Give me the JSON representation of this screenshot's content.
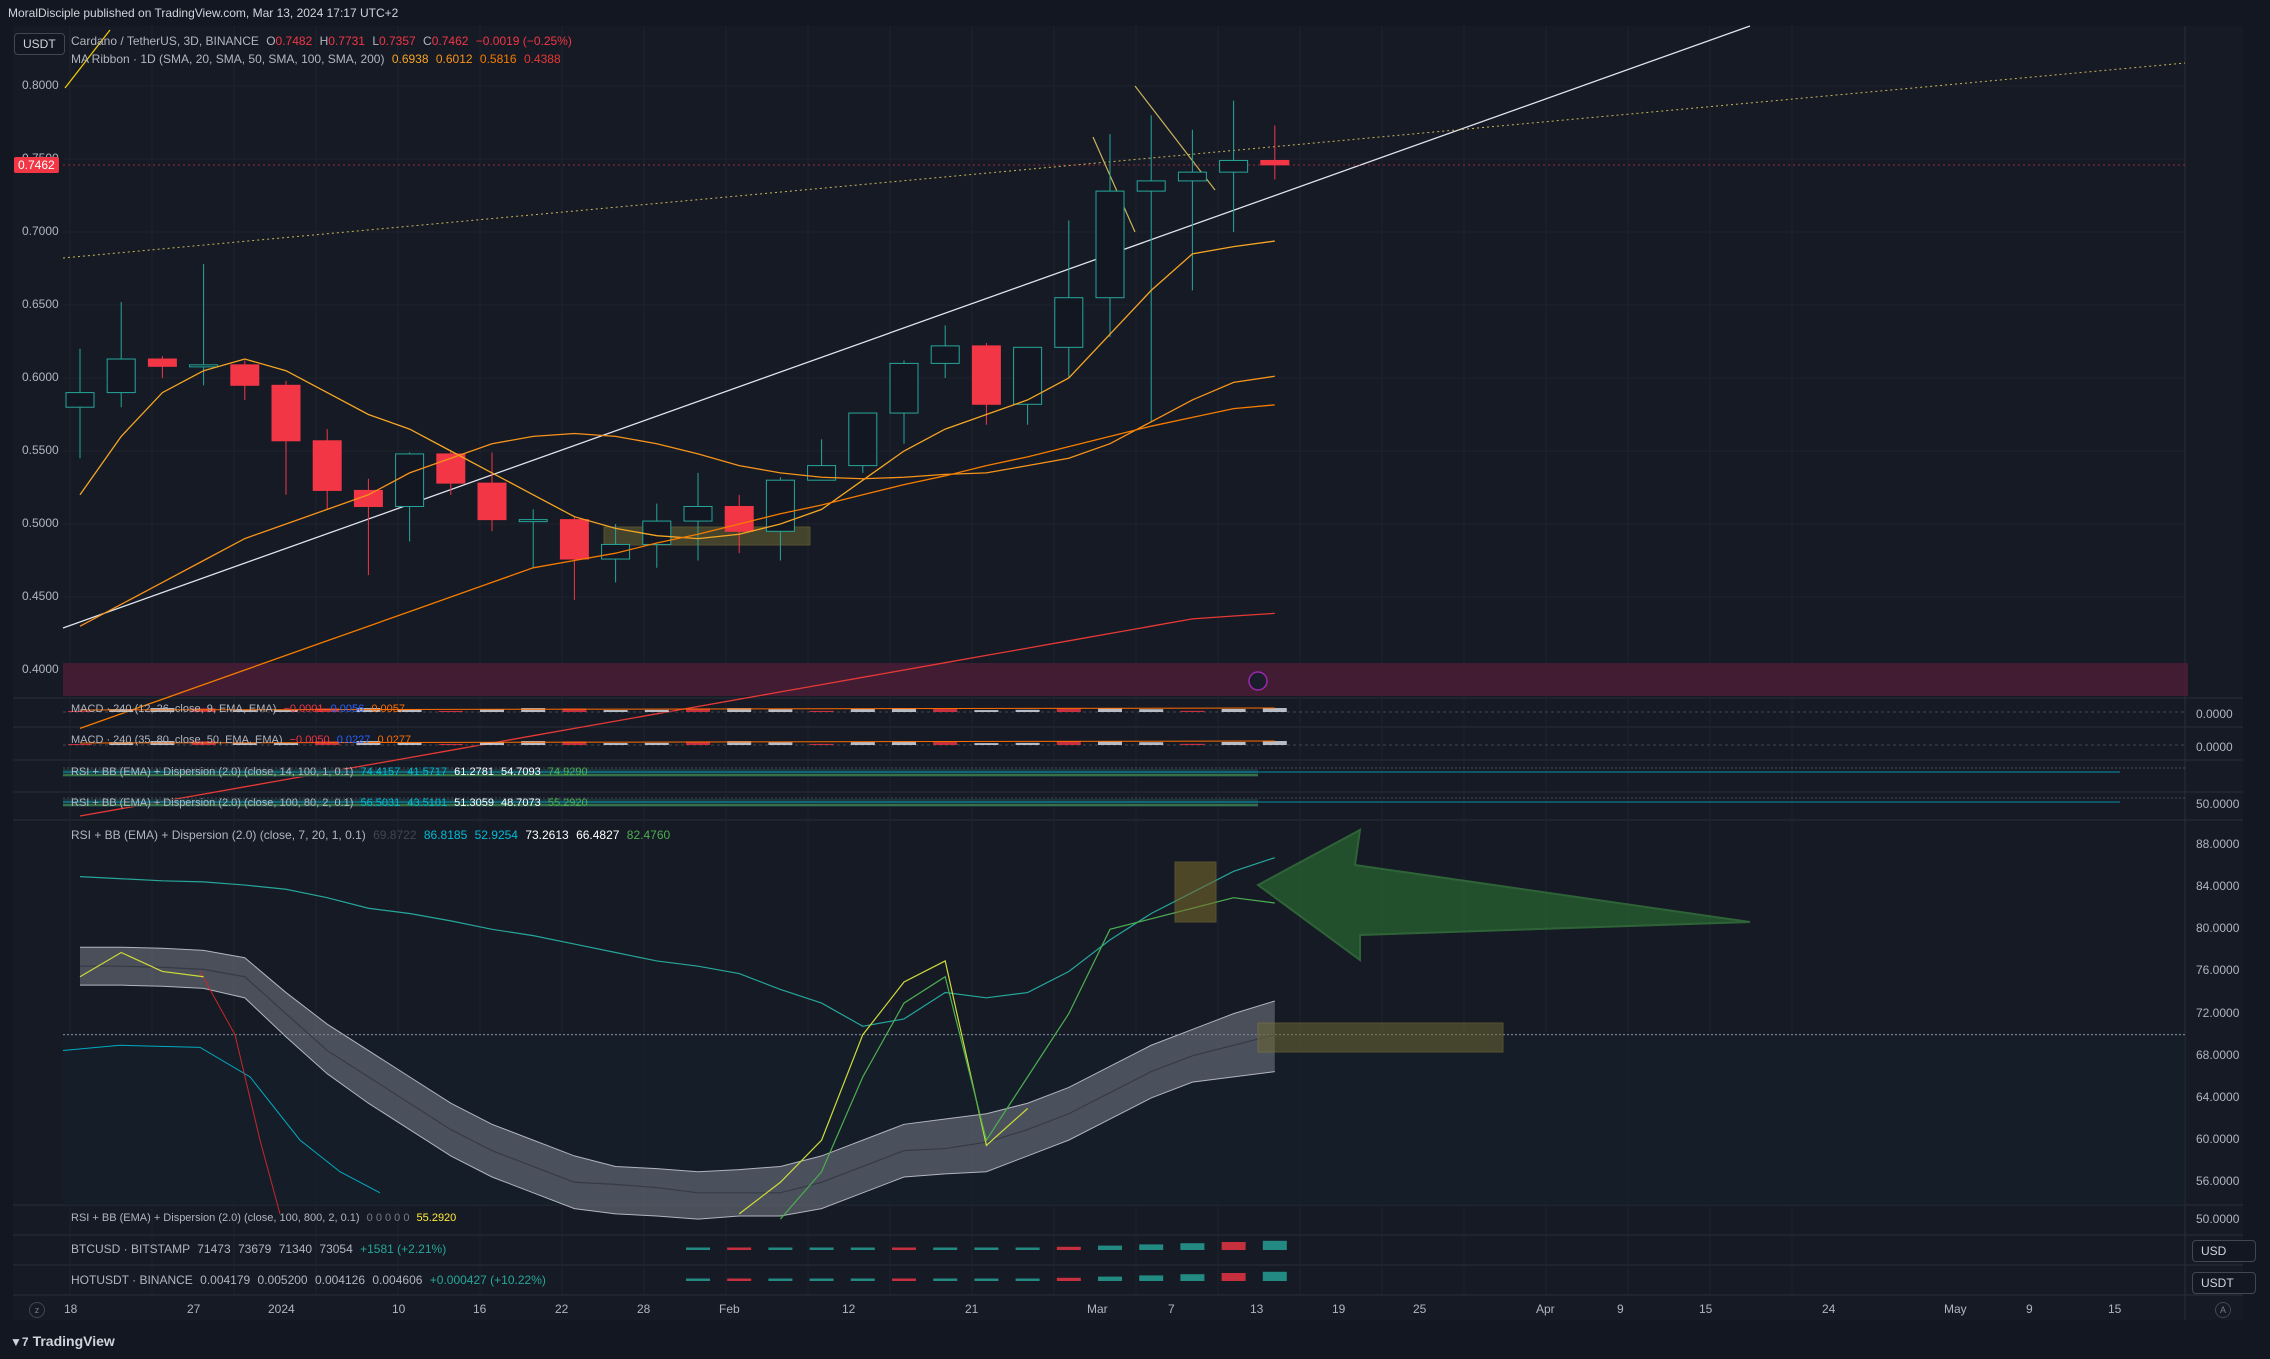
{
  "header": {
    "publisher": "MoralDisciple published on TradingView.com, Mar 13, 2024 17:17 UTC+2",
    "currency_badge": "USDT"
  },
  "legend": {
    "main": {
      "title": "Cardano / TetherUS, 3D, BINANCE",
      "o_label": "O",
      "o": "0.7482",
      "h_label": "H",
      "h": "0.7731",
      "l_label": "L",
      "l": "0.7357",
      "c_label": "C",
      "c": "0.7462",
      "change": "−0.0019 (−0.25%)"
    },
    "ribbon": {
      "title": "MA Ribbon · 1D (SMA, 20, SMA, 50, SMA, 100, SMA, 200)",
      "v1": "0.6938",
      "v2": "0.6012",
      "v3": "0.5816",
      "v4": "0.4388"
    }
  },
  "current_price_tag": "0.7462",
  "price_axis": [
    "0.8000",
    "0.7500",
    "0.7000",
    "0.6500",
    "0.6000",
    "0.5500",
    "0.5000",
    "0.4500",
    "0.4000"
  ],
  "panes": {
    "macd1": {
      "label": "MACD · 240 (12, 26, close, 9, EMA, EMA)",
      "v1": "−0.0001",
      "v2": "0.0056",
      "v3": "0.0057",
      "axis": "0.0000"
    },
    "macd2": {
      "label": "MACD · 240 (35, 80, close, 50, EMA, EMA)",
      "v1": "−0.0050",
      "v2": "0.0227",
      "v3": "0.0277",
      "axis": "0.0000"
    },
    "rsi1": {
      "label": "RSI + BB (EMA) + Dispersion (2.0) (close, 14, 100, 1, 0.1)",
      "v1": "74.4157",
      "v2": "41.5717",
      "v3": "61.2781",
      "v4": "54.7093",
      "v5": "74.9290"
    },
    "rsi2": {
      "label": "RSI + BB (EMA) + Dispersion (2.0) (close, 100, 80, 2, 0.1)",
      "v1": "56.5031",
      "v2": "43.5101",
      "v3": "51.3059",
      "v4": "48.7073",
      "v5": "55.2920",
      "axis": "50.0000"
    },
    "rsi3": {
      "label": "RSI + BB (EMA) + Dispersion (2.0) (close, 7, 20, 1, 0.1)",
      "v0": "69.8722",
      "v1": "86.8185",
      "v2": "52.9254",
      "v3": "73.2613",
      "v4": "66.4827",
      "v5": "82.4760",
      "axis": [
        "88.0000",
        "84.0000",
        "80.0000",
        "76.0000",
        "72.0000",
        "68.0000",
        "64.0000",
        "60.0000",
        "56.0000"
      ]
    },
    "rsi4": {
      "label": "RSI + BB (EMA) + Dispersion (2.0) (close, 100, 800, 2, 0.1)",
      "values": "0 0 0 0 0",
      "v5": "55.2920",
      "axis": "50.0000"
    },
    "btc": {
      "label": "BTCUSD · BITSTAMP",
      "o": "71473",
      "h": "73679",
      "l": "71340",
      "c": "73054",
      "change": "+1581 (+2.21%)",
      "badge": "USD"
    },
    "hot": {
      "label": "HOTUSDT · BINANCE",
      "o": "0.004179",
      "h": "0.005200",
      "l": "0.004126",
      "c": "0.004606",
      "change": "+0.000427 (+10.22%)",
      "badge": "USDT"
    }
  },
  "time_axis": [
    "18",
    "27",
    "2024",
    "10",
    "16",
    "22",
    "28",
    "Feb",
    "12",
    "21",
    "Mar",
    "7",
    "13",
    "19",
    "25",
    "Apr",
    "9",
    "15",
    "24",
    "May",
    "9",
    "15"
  ],
  "footer": {
    "brand": "TradingView"
  },
  "colors": {
    "up": "#26a69a",
    "down": "#f23645",
    "ma20": "#f5a623",
    "ma50": "#f7931a",
    "ma100": "#f57c00",
    "ma200": "#e53935",
    "trend": "#e0e3eb",
    "dotted": "#c9b458",
    "arrow": "#2e7d32"
  },
  "chart_data": {
    "type": "candlestick",
    "symbol": "Cardano / TetherUS, 3D, BINANCE",
    "ylim": [
      0.39,
      0.82
    ],
    "candles": [
      [
        0.58,
        0.62,
        0.545,
        0.59
      ],
      [
        0.59,
        0.652,
        0.58,
        0.613
      ],
      [
        0.613,
        0.615,
        0.6,
        0.608
      ],
      [
        0.608,
        0.678,
        0.595,
        0.609
      ],
      [
        0.609,
        0.612,
        0.585,
        0.595
      ],
      [
        0.595,
        0.598,
        0.52,
        0.557
      ],
      [
        0.557,
        0.565,
        0.51,
        0.523
      ],
      [
        0.523,
        0.531,
        0.465,
        0.512
      ],
      [
        0.512,
        0.549,
        0.488,
        0.548
      ],
      [
        0.548,
        0.55,
        0.52,
        0.528
      ],
      [
        0.528,
        0.549,
        0.495,
        0.503
      ],
      [
        0.503,
        0.51,
        0.47,
        0.503
      ],
      [
        0.503,
        0.505,
        0.448,
        0.476
      ],
      [
        0.476,
        0.5,
        0.46,
        0.486
      ],
      [
        0.486,
        0.514,
        0.47,
        0.502
      ],
      [
        0.502,
        0.535,
        0.475,
        0.512
      ],
      [
        0.512,
        0.52,
        0.48,
        0.495
      ],
      [
        0.495,
        0.532,
        0.475,
        0.53
      ],
      [
        0.53,
        0.558,
        0.53,
        0.54
      ],
      [
        0.54,
        0.576,
        0.535,
        0.576
      ],
      [
        0.576,
        0.612,
        0.555,
        0.61
      ],
      [
        0.61,
        0.636,
        0.6,
        0.622
      ],
      [
        0.622,
        0.624,
        0.568,
        0.582
      ],
      [
        0.582,
        0.621,
        0.568,
        0.621
      ],
      [
        0.621,
        0.708,
        0.6,
        0.655
      ],
      [
        0.655,
        0.767,
        0.628,
        0.728
      ],
      [
        0.728,
        0.78,
        0.57,
        0.735
      ],
      [
        0.735,
        0.77,
        0.66,
        0.741
      ],
      [
        0.741,
        0.79,
        0.7,
        0.749
      ],
      [
        0.749,
        0.773,
        0.736,
        0.746
      ]
    ],
    "ma_ribbon": {
      "sma20": [
        0.52,
        0.56,
        0.59,
        0.605,
        0.613,
        0.605,
        0.59,
        0.575,
        0.565,
        0.55,
        0.535,
        0.52,
        0.505,
        0.497,
        0.492,
        0.49,
        0.493,
        0.5,
        0.51,
        0.53,
        0.55,
        0.565,
        0.575,
        0.585,
        0.6,
        0.63,
        0.66,
        0.685,
        0.69,
        0.6938
      ],
      "sma50": [
        0.43,
        0.445,
        0.46,
        0.475,
        0.49,
        0.5,
        0.51,
        0.52,
        0.535,
        0.545,
        0.555,
        0.56,
        0.562,
        0.56,
        0.555,
        0.548,
        0.54,
        0.535,
        0.532,
        0.531,
        0.532,
        0.534,
        0.535,
        0.54,
        0.545,
        0.555,
        0.57,
        0.585,
        0.597,
        0.6012
      ],
      "sma100": [
        0.36,
        0.37,
        0.38,
        0.39,
        0.4,
        0.41,
        0.42,
        0.43,
        0.44,
        0.45,
        0.46,
        0.47,
        0.475,
        0.48,
        0.487,
        0.493,
        0.5,
        0.507,
        0.513,
        0.52,
        0.527,
        0.533,
        0.54,
        0.546,
        0.553,
        0.56,
        0.567,
        0.573,
        0.579,
        0.5816
      ],
      "sma200": [
        0.3,
        0.305,
        0.31,
        0.315,
        0.32,
        0.325,
        0.33,
        0.335,
        0.34,
        0.345,
        0.35,
        0.355,
        0.36,
        0.365,
        0.37,
        0.375,
        0.38,
        0.385,
        0.39,
        0.395,
        0.4,
        0.405,
        0.41,
        0.415,
        0.42,
        0.425,
        0.43,
        0.435,
        0.437,
        0.4388
      ]
    },
    "rsi_pane": {
      "ylim": [
        52,
        90
      ],
      "rsi": [
        75.5,
        77.8,
        76.0,
        75.5,
        null,
        null,
        null,
        null,
        null,
        null,
        null,
        null,
        null,
        null,
        null,
        null,
        null,
        52.5,
        57.0,
        66.0,
        73.0,
        75.5,
        60.0,
        66.0,
        72.0,
        80.0,
        81.0,
        82.0,
        83.0,
        82.5
      ],
      "slow": [
        85,
        84.8,
        84.6,
        84.5,
        84.2,
        83.8,
        83,
        82,
        81.5,
        80.8,
        80,
        79.4,
        78.6,
        77.8,
        77,
        76.5,
        75.8,
        74.3,
        73,
        70.8,
        71.5,
        74.0,
        73.5,
        74.0,
        76.0,
        79.0,
        81.5,
        83.5,
        85.5,
        86.8
      ],
      "bb_mid": [
        76.5,
        76.5,
        76.4,
        76.2,
        75.5,
        72.0,
        68.5,
        66.0,
        63.5,
        61.0,
        59.0,
        57.5,
        56.0,
        55.8,
        55.5,
        55.0,
        55.0,
        55.0,
        56.0,
        57.5,
        59.0,
        59.2,
        59.8,
        61.0,
        62.5,
        64.5,
        66.5,
        68.0,
        69.0,
        70.0
      ],
      "bb_upper": [
        78.3,
        78.3,
        78.2,
        78.0,
        77.3,
        74.0,
        71.0,
        68.5,
        66.0,
        63.5,
        61.5,
        60.0,
        58.5,
        57.5,
        57.3,
        57.0,
        57.2,
        57.5,
        58.5,
        60.0,
        61.5,
        62.0,
        62.5,
        63.5,
        65.0,
        67.0,
        69.0,
        70.5,
        72.0,
        73.2
      ],
      "bb_lower": [
        74.7,
        74.7,
        74.6,
        74.4,
        73.5,
        69.8,
        66.3,
        63.5,
        61.0,
        58.5,
        56.5,
        55.0,
        53.5,
        53.0,
        52.8,
        52.5,
        52.8,
        52.8,
        53.5,
        55.0,
        56.5,
        56.8,
        57.0,
        58.5,
        60.0,
        62.0,
        64.0,
        65.5,
        66.0,
        66.5
      ]
    }
  }
}
